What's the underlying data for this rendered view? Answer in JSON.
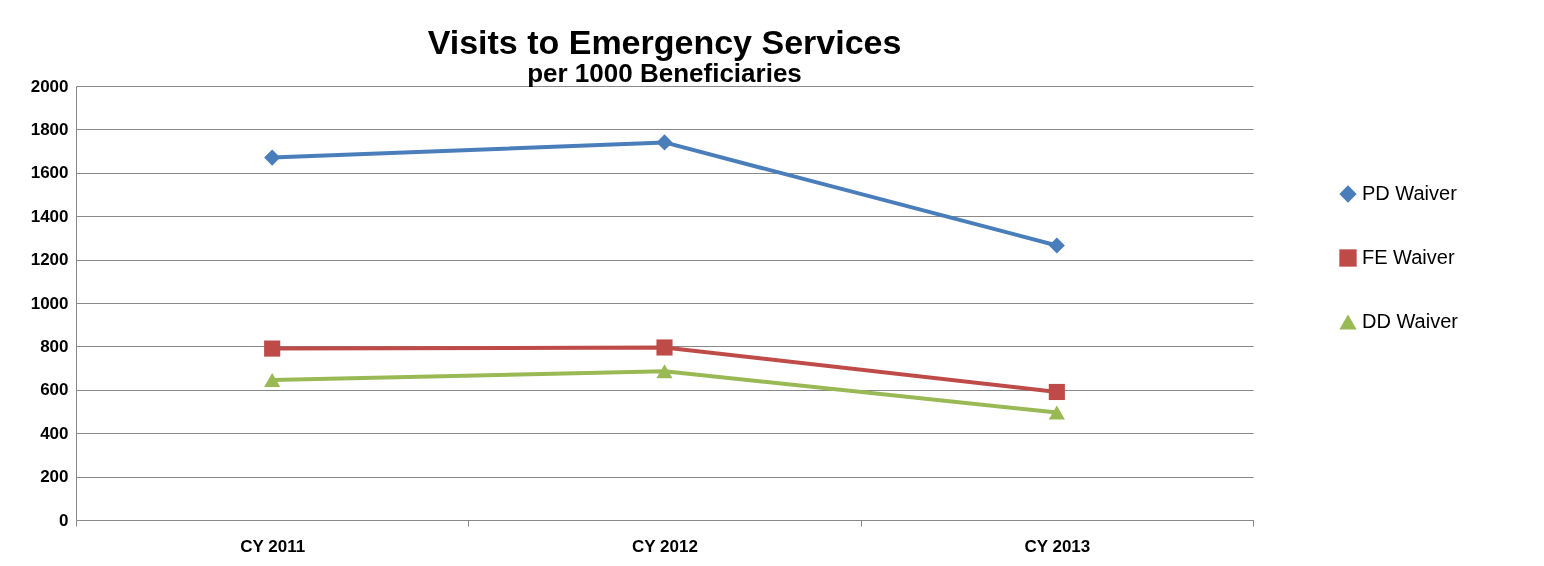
{
  "chart_data": {
    "type": "line",
    "title": "Visits to Emergency Services",
    "subtitle": "per 1000 Beneficiaries",
    "categories": [
      "CY 2011",
      "CY 2012",
      "CY 2013"
    ],
    "series": [
      {
        "name": "PD Waiver",
        "color": "#4a7ebb",
        "marker": "diamond",
        "values": [
          1670,
          1740,
          1265
        ]
      },
      {
        "name": "FE Waiver",
        "color": "#be4b48",
        "marker": "square",
        "values": [
          790,
          795,
          590
        ]
      },
      {
        "name": "DD Waiver",
        "color": "#98b954",
        "marker": "triangle",
        "values": [
          645,
          685,
          495
        ]
      }
    ],
    "ylim": [
      0,
      2000
    ],
    "yticks": [
      0,
      200,
      400,
      600,
      800,
      1000,
      1200,
      1400,
      1600,
      1800,
      2000
    ],
    "grid": "y",
    "legend": "right",
    "line_style": "solid"
  }
}
